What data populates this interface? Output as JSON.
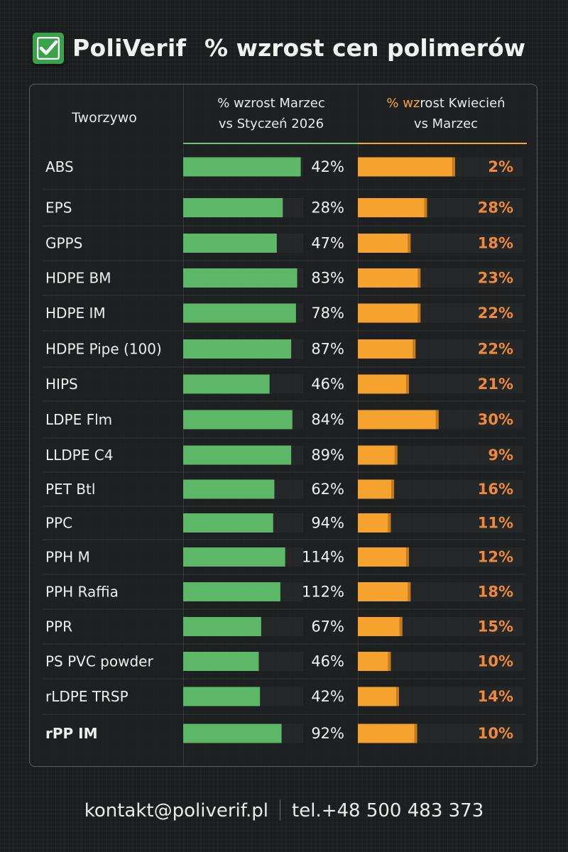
{
  "header": {
    "brand": "PoliVerif",
    "title": "% wzrost cen polimerów"
  },
  "columns": {
    "material": "Tworzywo",
    "march_line1": "% wzrost Marzec",
    "march_line2": "vs Styczeń 2026",
    "april_accent": "% wz",
    "april_line1_rest": "rost Kwiecień",
    "april_line2": "vs Marzec"
  },
  "colors": {
    "green": "#5cb866",
    "orange": "#f5a22e",
    "orange_text": "#f08a3a",
    "logo": "#3aa24a"
  },
  "chart_data": {
    "type": "bar",
    "title": "% wzrost cen polimerów",
    "categories": [
      "ABS",
      "EPS",
      "GPPS",
      "HDPE BM",
      "HDPE IM",
      "HDPE Pipe (100)",
      "HIPS",
      "LDPE Flm",
      "LLDPE C4",
      "PET Btl",
      "PPC",
      "PPH M",
      "PPH Raffia",
      "PPR",
      "PS PVC powder",
      "rLDPE TRSP",
      "rPP IM"
    ],
    "series": [
      {
        "name": "% wzrost Marzec vs Styczeń 2026",
        "values": [
          42,
          28,
          47,
          83,
          78,
          87,
          46,
          84,
          89,
          62,
          94,
          114,
          112,
          67,
          46,
          42,
          92
        ],
        "labels": [
          "42%",
          "28%",
          "47%",
          "83%",
          "78%",
          "87%",
          "46%",
          "84%",
          "89%",
          "62%",
          "94%",
          "114%",
          "112%",
          "67%",
          "46%",
          "42%",
          "92%"
        ]
      },
      {
        "name": "% wzrost Kwiecień vs Marzec",
        "values": [
          2,
          28,
          18,
          23,
          22,
          22,
          21,
          30,
          9,
          16,
          11,
          12,
          18,
          15,
          10,
          14,
          10
        ],
        "labels": [
          "2%",
          "28%",
          "18%",
          "23%",
          "22%",
          "22%",
          "21%",
          "30%",
          "9%",
          "16%",
          "11%",
          "12%",
          "18%",
          "15%",
          "10%",
          "14%",
          "10%"
        ]
      }
    ],
    "bar_fill_fraction": {
      "march": [
        0.98,
        0.83,
        0.78,
        0.95,
        0.94,
        0.9,
        0.72,
        0.91,
        0.9,
        0.76,
        0.75,
        0.85,
        0.81,
        0.65,
        0.63,
        0.64,
        0.82
      ],
      "april": [
        0.59,
        0.42,
        0.32,
        0.38,
        0.38,
        0.35,
        0.31,
        0.49,
        0.24,
        0.22,
        0.2,
        0.31,
        0.32,
        0.27,
        0.2,
        0.25,
        0.36
      ]
    },
    "grid": true,
    "legend": "none"
  },
  "footer": {
    "email": "kontakt@poliverif.pl",
    "phone": "tel.+48 500 483 373"
  }
}
